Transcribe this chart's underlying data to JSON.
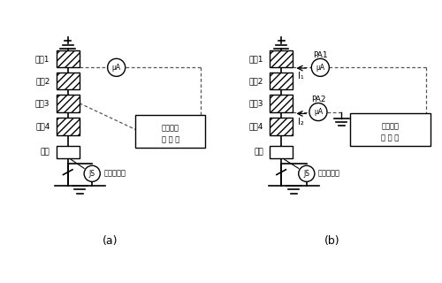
{
  "label_a": "(a)",
  "label_b": "(b)",
  "bg_color": "#ffffff",
  "component_labels": [
    "元件1",
    "元件2",
    "元件3",
    "元件4",
    "基座"
  ],
  "box_label_dc_line1": "直流高压",
  "box_label_dc_line2": "发 生 器",
  "label_uA": "μA",
  "label_JS": "JS",
  "label_fdc": "放电计数器",
  "label_PA1": "PA1",
  "label_PA2": "PA2",
  "label_I1": "I₁",
  "label_I2": "I₂"
}
